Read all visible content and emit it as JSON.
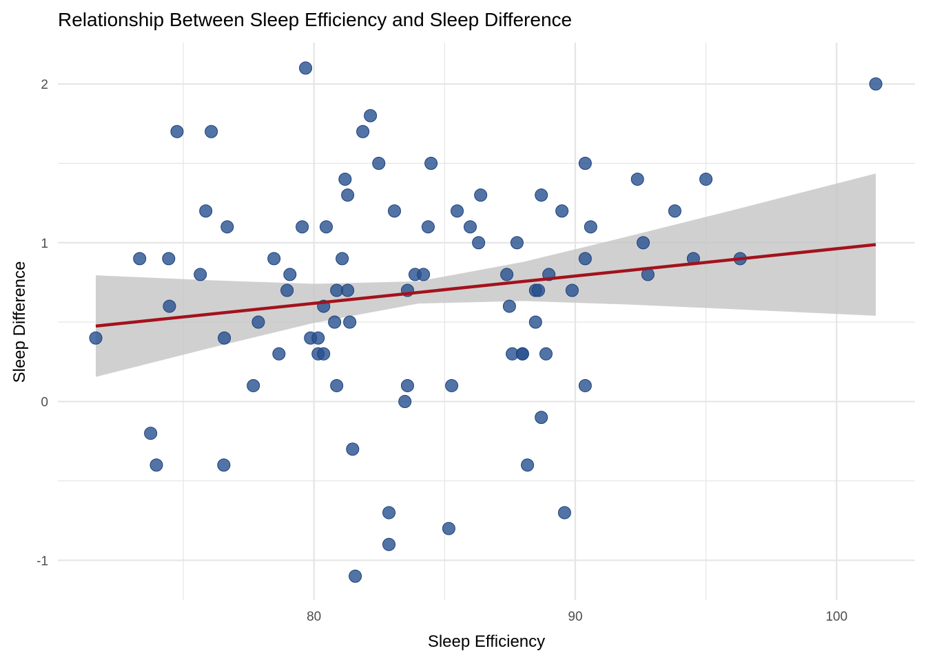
{
  "chart_data": {
    "type": "scatter",
    "title": "Relationship Between Sleep Efficiency and Sleep Difference",
    "xlabel": "Sleep Efficiency",
    "ylabel": "Sleep Difference",
    "xlim": [
      70.2,
      103.0
    ],
    "ylim": [
      -1.25,
      2.26
    ],
    "xticks": [
      80,
      90,
      100
    ],
    "yticks": [
      -1,
      0,
      1,
      2
    ],
    "grid": true,
    "colors": {
      "points": "#27508f",
      "fit_line": "#a3121c",
      "ribbon": "#c4c4c4",
      "grid": "#e5e5e5"
    },
    "points": [
      [
        71.65,
        0.4
      ],
      [
        73.33,
        0.9
      ],
      [
        73.75,
        -0.2
      ],
      [
        73.97,
        -0.4
      ],
      [
        74.44,
        0.9
      ],
      [
        74.47,
        0.6
      ],
      [
        74.76,
        1.7
      ],
      [
        75.65,
        0.8
      ],
      [
        75.86,
        1.2
      ],
      [
        76.07,
        1.7
      ],
      [
        76.55,
        -0.4
      ],
      [
        76.57,
        0.4
      ],
      [
        76.68,
        1.1
      ],
      [
        77.68,
        0.1
      ],
      [
        77.87,
        0.5
      ],
      [
        78.47,
        0.9
      ],
      [
        78.66,
        0.3
      ],
      [
        78.97,
        0.7
      ],
      [
        79.08,
        0.8
      ],
      [
        79.55,
        1.1
      ],
      [
        79.68,
        2.1
      ],
      [
        79.87,
        0.4
      ],
      [
        80.16,
        0.4
      ],
      [
        80.16,
        0.3
      ],
      [
        80.37,
        0.6
      ],
      [
        80.37,
        0.3
      ],
      [
        80.47,
        1.1
      ],
      [
        80.79,
        0.5
      ],
      [
        80.87,
        0.7
      ],
      [
        80.87,
        0.1
      ],
      [
        81.08,
        0.9
      ],
      [
        81.19,
        1.4
      ],
      [
        81.29,
        1.3
      ],
      [
        81.29,
        0.7
      ],
      [
        81.37,
        0.5
      ],
      [
        81.48,
        -0.3
      ],
      [
        81.58,
        -1.1
      ],
      [
        81.87,
        1.7
      ],
      [
        82.16,
        1.8
      ],
      [
        82.48,
        1.5
      ],
      [
        82.87,
        -0.7
      ],
      [
        82.87,
        -0.9
      ],
      [
        83.08,
        1.2
      ],
      [
        83.48,
        0.0
      ],
      [
        83.58,
        0.7
      ],
      [
        83.58,
        0.1
      ],
      [
        83.87,
        0.8
      ],
      [
        84.19,
        0.8
      ],
      [
        84.37,
        1.1
      ],
      [
        84.48,
        1.5
      ],
      [
        85.16,
        -0.8
      ],
      [
        85.27,
        0.1
      ],
      [
        85.48,
        1.2
      ],
      [
        85.98,
        1.1
      ],
      [
        86.3,
        1.0
      ],
      [
        86.38,
        1.3
      ],
      [
        87.38,
        0.8
      ],
      [
        87.48,
        0.6
      ],
      [
        87.59,
        0.3
      ],
      [
        87.77,
        1.0
      ],
      [
        87.98,
        0.3
      ],
      [
        87.98,
        0.3
      ],
      [
        88.17,
        -0.4
      ],
      [
        88.48,
        0.5
      ],
      [
        88.48,
        0.7
      ],
      [
        88.59,
        0.7
      ],
      [
        88.7,
        1.3
      ],
      [
        88.7,
        -0.1
      ],
      [
        88.88,
        0.3
      ],
      [
        88.99,
        0.8
      ],
      [
        89.49,
        1.2
      ],
      [
        89.59,
        -0.7
      ],
      [
        89.88,
        0.7
      ],
      [
        90.38,
        1.5
      ],
      [
        90.38,
        0.9
      ],
      [
        90.38,
        0.1
      ],
      [
        90.59,
        1.1
      ],
      [
        92.38,
        1.4
      ],
      [
        92.6,
        1.0
      ],
      [
        92.78,
        0.8
      ],
      [
        93.81,
        1.2
      ],
      [
        94.52,
        0.9
      ],
      [
        95.0,
        1.4
      ],
      [
        96.31,
        0.9
      ],
      [
        101.5,
        2.0
      ]
    ],
    "fit_line": {
      "x": [
        71.65,
        101.5
      ],
      "y": [
        0.475,
        0.988
      ]
    },
    "ribbon": {
      "x": [
        71.65,
        76,
        80,
        84,
        88,
        92,
        96,
        101.5
      ],
      "lower": [
        0.155,
        0.336,
        0.495,
        0.617,
        0.633,
        0.611,
        0.582,
        0.54
      ],
      "upper": [
        0.795,
        0.764,
        0.741,
        0.757,
        0.879,
        1.039,
        1.204,
        1.436
      ]
    }
  }
}
